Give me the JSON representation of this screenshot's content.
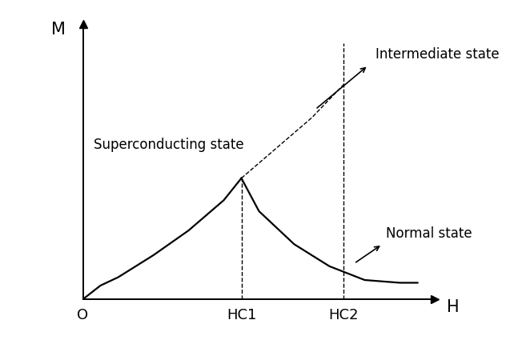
{
  "chart_data": {
    "type": "line",
    "x_label": "H",
    "y_label": "M",
    "xlim": [
      0,
      10
    ],
    "ylim": [
      0,
      10
    ],
    "xticks": [
      {
        "value": 0,
        "label": "O"
      },
      {
        "value": 4.5,
        "label": "HC1"
      },
      {
        "value": 7.4,
        "label": "HC2"
      }
    ],
    "yticks": [],
    "tick_labels": "x",
    "color": "#000000",
    "series": [
      {
        "x": [
          0,
          0.5,
          1,
          2,
          3,
          4,
          4.5
        ],
        "values": [
          0,
          0.5,
          0.8,
          1.6,
          2.5,
          3.6,
          4.4
        ],
        "line_style": "solid"
      },
      {
        "x": [
          4.5,
          5,
          6,
          7,
          8,
          9,
          9.5
        ],
        "values": [
          4.4,
          3.2,
          2.0,
          1.2,
          0.7,
          0.6,
          0.6
        ],
        "line_style": "solid"
      },
      {
        "x": [
          4.5,
          5.5,
          6.5,
          7.4
        ],
        "values": [
          4.4,
          5.5,
          6.6,
          7.8
        ],
        "line_style": "dashed"
      },
      {
        "x": [
          4.5,
          4.5
        ],
        "values": [
          0,
          4.4
        ],
        "line_style": "dashed"
      },
      {
        "x": [
          7.4,
          7.4
        ],
        "values": [
          0,
          9.3
        ],
        "line_style": "dashed"
      }
    ],
    "annotations": [
      "Superconducting state",
      "Intermediate state",
      "Normal state"
    ]
  }
}
